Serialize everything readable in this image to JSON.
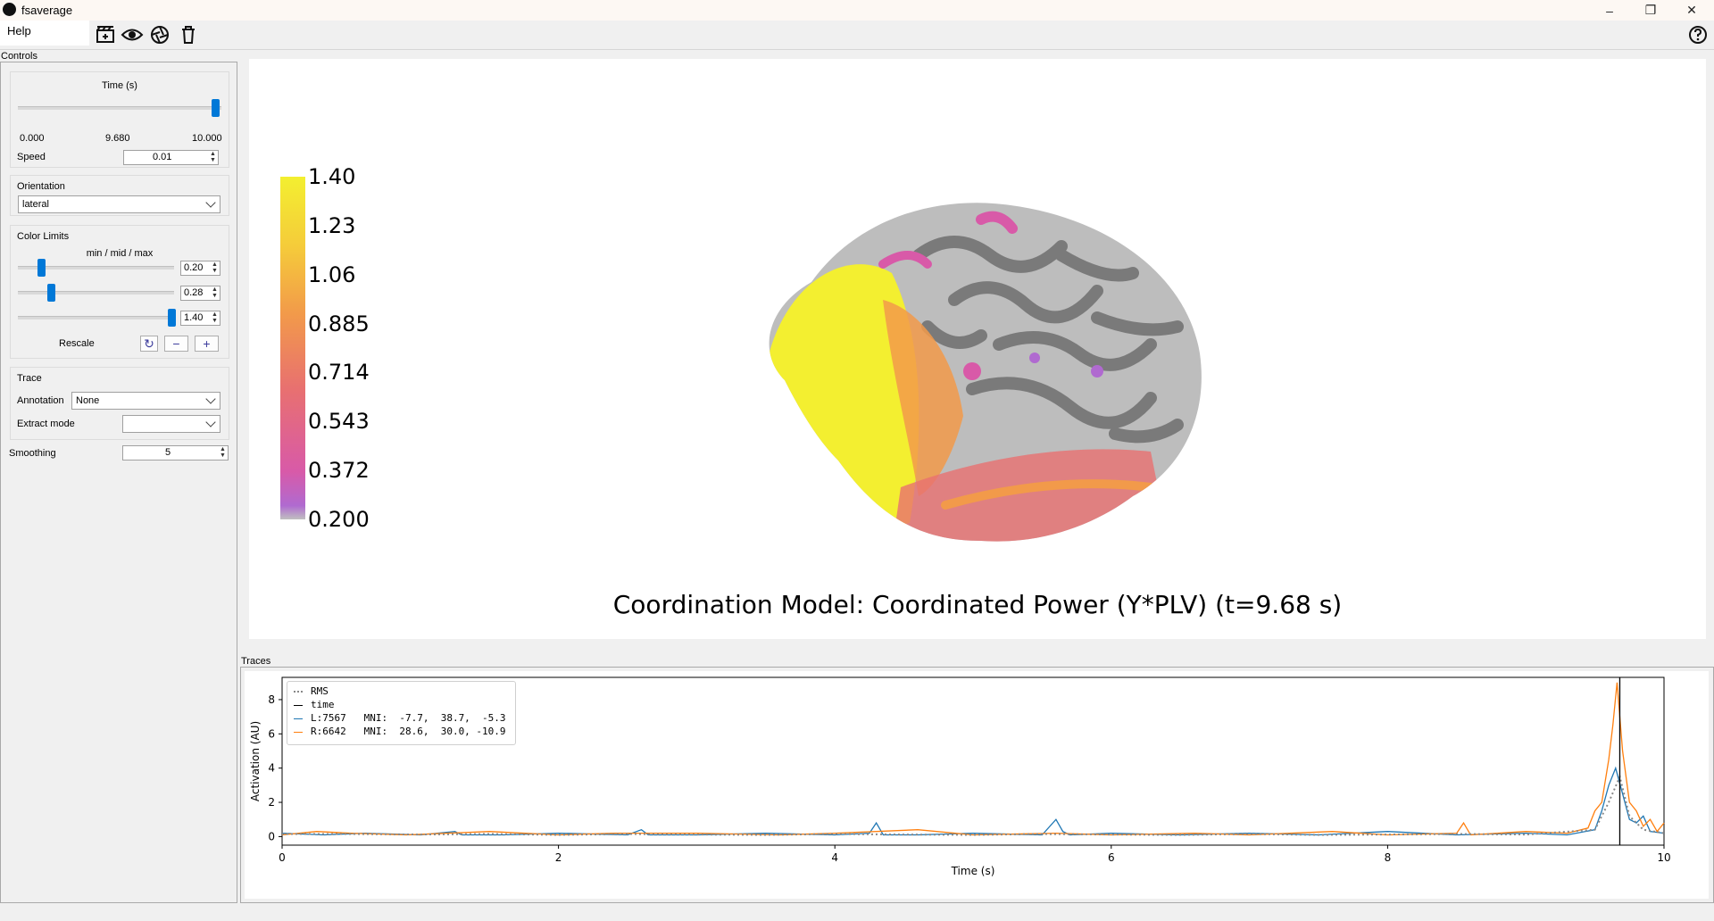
{
  "window": {
    "title": "fsaverage",
    "minimize": "–",
    "maximize": "❐",
    "close": "✕"
  },
  "menu": {
    "help": "Help"
  },
  "toolbar": {
    "icons": [
      "movie-icon",
      "eye-icon",
      "screenshot-icon",
      "trash-icon",
      "help-circle-icon"
    ]
  },
  "controls": {
    "dock_title": "Controls",
    "time": {
      "label": "Time (s)",
      "min": "0.000",
      "current": "9.680",
      "max": "10.000",
      "position": 0.968,
      "speed_label": "Speed",
      "speed_value": "0.01"
    },
    "orientation": {
      "label": "Orientation",
      "value": "lateral"
    },
    "color_limits": {
      "label": "Color Limits",
      "sublabel": "min / mid / max",
      "sliders": [
        {
          "value": "0.20",
          "position": 0.15
        },
        {
          "value": "0.28",
          "position": 0.21
        },
        {
          "value": "1.40",
          "position": 0.98
        }
      ],
      "rescale_label": "Rescale",
      "reset_icon": "↻",
      "minus": "−",
      "plus": "+"
    },
    "trace": {
      "label": "Trace",
      "annotation_label": "Annotation",
      "annotation_value": "None",
      "extract_label": "Extract mode",
      "extract_value": ""
    },
    "smoothing": {
      "label": "Smoothing",
      "value": "5"
    }
  },
  "viewport": {
    "colorbar": {
      "ticks": [
        "1.40",
        "1.23",
        "1.06",
        "0.885",
        "0.714",
        "0.543",
        "0.372",
        "0.200"
      ],
      "colors": [
        "#f3ef30",
        "#f5cc3a",
        "#f29a4a",
        "#e87070",
        "#d85aa8",
        "#b06ad0",
        "#c0c0c0"
      ]
    },
    "title": "Coordination Model: Coordinated Power (Y*PLV) (t=9.68 s)",
    "cortex_color": "#bdbdbd",
    "sulci_color": "#7a7a7a"
  },
  "traces": {
    "dock_title": "Traces",
    "legend": [
      {
        "label": "RMS",
        "color": "#888888",
        "style": "dotted"
      },
      {
        "label": "time",
        "color": "#000000",
        "style": "solid"
      },
      {
        "label": "L:7567   MNI:  -7.7,  38.7,  -5.3",
        "color": "#1f77b4",
        "style": "solid"
      },
      {
        "label": "R:6642   MNI:  28.6,  30.0, -10.9",
        "color": "#ff7f0e",
        "style": "solid"
      }
    ]
  },
  "chart_data": {
    "type": "line",
    "xlabel": "Time (s)",
    "ylabel": "Activation (AU)",
    "xlim": [
      0,
      10
    ],
    "ylim": [
      -0.5,
      9.3
    ],
    "xticks": [
      0,
      2,
      4,
      6,
      8,
      10
    ],
    "yticks": [
      0,
      2,
      4,
      6,
      8
    ],
    "time_marker": 9.68,
    "series": [
      {
        "name": "L:7567   MNI:  -7.7,  38.7,  -5.3",
        "color": "#1f77b4",
        "x": [
          0,
          0.3,
          0.6,
          1.0,
          1.25,
          1.3,
          1.6,
          2.0,
          2.5,
          2.6,
          2.65,
          3.0,
          3.5,
          4.0,
          4.25,
          4.3,
          4.35,
          4.6,
          5.0,
          5.5,
          5.6,
          5.65,
          5.7,
          6.0,
          6.5,
          7.0,
          7.5,
          8.0,
          8.5,
          9.0,
          9.3,
          9.5,
          9.55,
          9.6,
          9.65,
          9.7,
          9.75,
          9.8,
          9.85,
          9.9,
          10.0
        ],
        "y": [
          0.2,
          0.1,
          0.2,
          0.1,
          0.3,
          0.1,
          0.1,
          0.2,
          0.1,
          0.4,
          0.1,
          0.1,
          0.2,
          0.1,
          0.2,
          0.8,
          0.1,
          0.1,
          0.2,
          0.1,
          1.0,
          0.3,
          0.1,
          0.2,
          0.1,
          0.2,
          0.1,
          0.3,
          0.1,
          0.2,
          0.1,
          0.4,
          1.5,
          3.0,
          4.0,
          2.5,
          1.0,
          0.8,
          1.2,
          0.3,
          0.2
        ]
      },
      {
        "name": "R:6642   MNI:  28.6,  30.0, -10.9",
        "color": "#ff7f0e",
        "x": [
          0,
          0.25,
          0.5,
          0.9,
          1.5,
          2.0,
          2.4,
          3.0,
          3.6,
          4.0,
          4.6,
          5.0,
          5.6,
          6.0,
          6.6,
          7.0,
          7.6,
          8.0,
          8.5,
          8.55,
          8.6,
          9.0,
          9.3,
          9.45,
          9.5,
          9.55,
          9.6,
          9.63,
          9.66,
          9.7,
          9.75,
          9.8,
          9.85,
          9.9,
          9.95,
          10.0
        ],
        "y": [
          0.1,
          0.3,
          0.2,
          0.1,
          0.3,
          0.1,
          0.2,
          0.2,
          0.1,
          0.2,
          0.4,
          0.1,
          0.2,
          0.1,
          0.2,
          0.1,
          0.3,
          0.1,
          0.2,
          0.8,
          0.1,
          0.3,
          0.2,
          0.5,
          1.5,
          2.0,
          4.5,
          6.5,
          9.0,
          5.0,
          2.0,
          1.5,
          0.6,
          1.0,
          0.3,
          0.8
        ]
      },
      {
        "name": "RMS",
        "color": "#888888",
        "x": [
          0,
          0.5,
          1,
          1.5,
          2,
          2.5,
          3,
          3.5,
          4,
          4.5,
          5,
          5.5,
          6,
          6.5,
          7,
          7.5,
          8,
          8.5,
          9,
          9.5,
          9.6,
          9.68,
          9.75,
          9.85,
          10.0
        ],
        "y": [
          0.15,
          0.15,
          0.12,
          0.15,
          0.1,
          0.15,
          0.12,
          0.1,
          0.15,
          0.12,
          0.1,
          0.15,
          0.12,
          0.1,
          0.15,
          0.1,
          0.12,
          0.15,
          0.12,
          0.4,
          2.0,
          3.5,
          1.2,
          0.4,
          0.2
        ]
      }
    ]
  }
}
